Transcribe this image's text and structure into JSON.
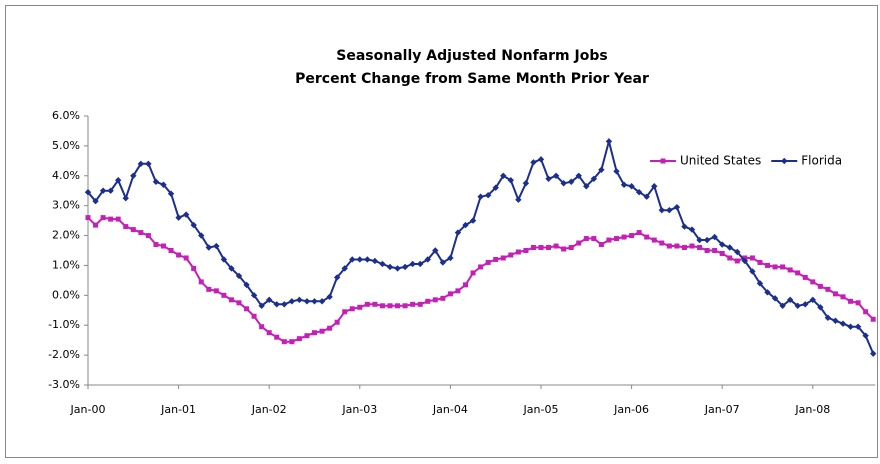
{
  "chart_data": {
    "type": "line",
    "title": "Seasonally Adjusted Nonfarm Jobs",
    "subtitle": "Percent Change from Same Month Prior Year",
    "categories": [
      "Jan-00",
      null,
      null,
      null,
      null,
      null,
      null,
      null,
      null,
      null,
      null,
      null,
      "Jan-01",
      null,
      null,
      null,
      null,
      null,
      null,
      null,
      null,
      null,
      null,
      null,
      "Jan-02",
      null,
      null,
      null,
      null,
      null,
      null,
      null,
      null,
      null,
      null,
      null,
      "Jan-03",
      null,
      null,
      null,
      null,
      null,
      null,
      null,
      null,
      null,
      null,
      null,
      "Jan-04",
      null,
      null,
      null,
      null,
      null,
      null,
      null,
      null,
      null,
      null,
      null,
      "Jan-05",
      null,
      null,
      null,
      null,
      null,
      null,
      null,
      null,
      null,
      null,
      null,
      "Jan-06",
      null,
      null,
      null,
      null,
      null,
      null,
      null,
      null,
      null,
      null,
      null,
      "Jan-07",
      null,
      null,
      null,
      null,
      null,
      null,
      null,
      null,
      null,
      null,
      null,
      "Jan-08",
      null,
      null,
      null,
      null,
      null,
      null,
      null,
      null
    ],
    "series": [
      {
        "name": "United States",
        "color": "#c51fb8",
        "marker": "square",
        "values": [
          2.6,
          2.35,
          2.6,
          2.55,
          2.55,
          2.3,
          2.2,
          2.1,
          2.0,
          1.7,
          1.65,
          1.5,
          1.35,
          1.25,
          0.9,
          0.45,
          0.2,
          0.15,
          0.0,
          -0.15,
          -0.25,
          -0.45,
          -0.7,
          -1.05,
          -1.25,
          -1.4,
          -1.55,
          -1.55,
          -1.45,
          -1.35,
          -1.25,
          -1.2,
          -1.1,
          -0.9,
          -0.55,
          -0.45,
          -0.4,
          -0.3,
          -0.3,
          -0.35,
          -0.35,
          -0.35,
          -0.35,
          -0.3,
          -0.3,
          -0.2,
          -0.15,
          -0.1,
          0.05,
          0.15,
          0.35,
          0.75,
          0.95,
          1.1,
          1.2,
          1.25,
          1.35,
          1.45,
          1.5,
          1.6,
          1.6,
          1.6,
          1.65,
          1.55,
          1.6,
          1.75,
          1.9,
          1.9,
          1.7,
          1.85,
          1.9,
          1.95,
          2.0,
          2.1,
          1.95,
          1.85,
          1.75,
          1.65,
          1.65,
          1.6,
          1.65,
          1.6,
          1.5,
          1.5,
          1.4,
          1.25,
          1.15,
          1.25,
          1.25,
          1.1,
          1.0,
          0.95,
          0.95,
          0.85,
          0.75,
          0.6,
          0.45,
          0.3,
          0.2,
          0.05,
          -0.05,
          -0.2,
          -0.25,
          -0.55,
          -0.8
        ]
      },
      {
        "name": "Florida",
        "color": "#1c2f8f",
        "marker": "diamond",
        "values": [
          3.45,
          3.15,
          3.5,
          3.5,
          3.85,
          3.25,
          4.0,
          4.4,
          4.4,
          3.8,
          3.7,
          3.4,
          2.6,
          2.7,
          2.35,
          2.0,
          1.6,
          1.65,
          1.2,
          0.9,
          0.65,
          0.35,
          0.0,
          -0.35,
          -0.15,
          -0.3,
          -0.3,
          -0.2,
          -0.15,
          -0.2,
          -0.2,
          -0.2,
          -0.05,
          0.6,
          0.9,
          1.2,
          1.2,
          1.2,
          1.15,
          1.05,
          0.95,
          0.9,
          0.95,
          1.05,
          1.05,
          1.2,
          1.5,
          1.1,
          1.25,
          2.1,
          2.35,
          2.5,
          3.3,
          3.35,
          3.6,
          4.0,
          3.85,
          3.2,
          3.75,
          4.45,
          4.55,
          3.9,
          4.0,
          3.75,
          3.8,
          4.0,
          3.65,
          3.9,
          4.2,
          5.15,
          4.15,
          3.7,
          3.65,
          3.45,
          3.3,
          3.65,
          2.85,
          2.85,
          2.95,
          2.3,
          2.2,
          1.85,
          1.85,
          1.95,
          1.7,
          1.6,
          1.45,
          1.15,
          0.8,
          0.4,
          0.1,
          -0.1,
          -0.35,
          -0.15,
          -0.35,
          -0.3,
          -0.15,
          -0.4,
          -0.75,
          -0.85,
          -0.95,
          -1.05,
          -1.05,
          -1.35,
          -1.95
        ]
      }
    ],
    "ylim": [
      -3,
      6
    ],
    "yticks": [
      {
        "value": -3,
        "label": "-3.0%"
      },
      {
        "value": -2,
        "label": "-2.0%"
      },
      {
        "value": -1,
        "label": "-1.0%"
      },
      {
        "value": 0,
        "label": "0.0%"
      },
      {
        "value": 1,
        "label": "1.0%"
      },
      {
        "value": 2,
        "label": "2.0%"
      },
      {
        "value": 3,
        "label": "3.0%"
      },
      {
        "value": 4,
        "label": "4.0%"
      },
      {
        "value": 5,
        "label": "5.0%"
      },
      {
        "value": 6,
        "label": "6.0%"
      }
    ],
    "grid": false,
    "legend": "top-right"
  }
}
